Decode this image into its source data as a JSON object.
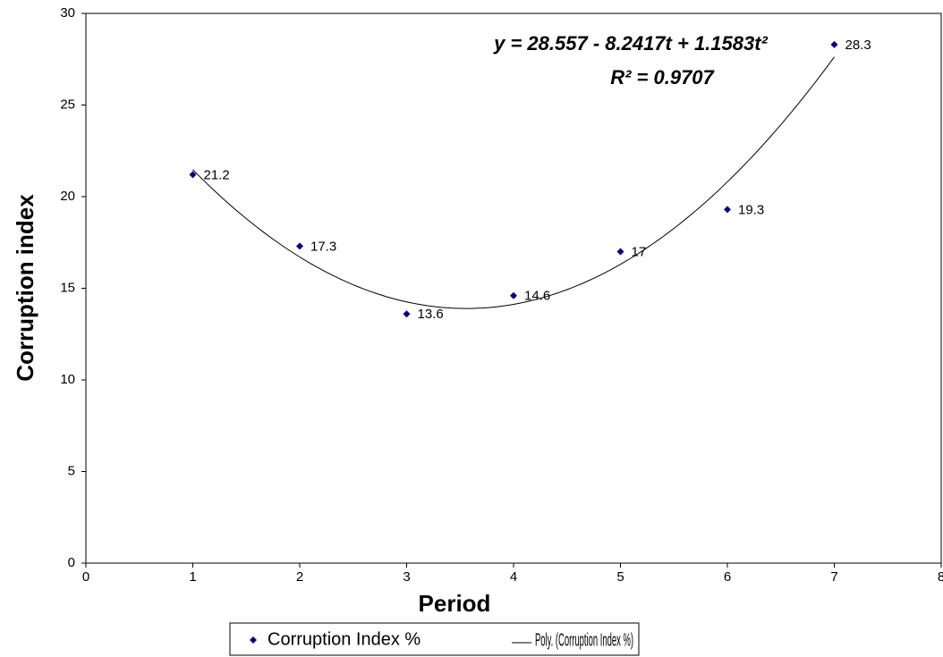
{
  "chart_data": {
    "type": "scatter",
    "x_label": "Period",
    "y_label": "Corruption index",
    "x": [
      1,
      2,
      3,
      4,
      5,
      6,
      7
    ],
    "series": [
      {
        "name": "Corruption Index %",
        "color": "#000080",
        "marker": "diamond",
        "values": [
          21.2,
          17.3,
          13.6,
          14.6,
          17,
          19.3,
          28.3
        ]
      }
    ],
    "data_labels": true,
    "trendline": {
      "type": "polynomial",
      "order": 2,
      "color": "#000000",
      "name": "Poly. (Corruption Index %)",
      "equation": "y = 28.557 - 8.2417t + 1.1583t²",
      "r_squared": "R² = 0.9707"
    },
    "xlim": [
      0,
      8
    ],
    "xticks": [
      0,
      1,
      2,
      3,
      4,
      5,
      6,
      7,
      8
    ],
    "ylim": [
      0,
      30
    ],
    "yticks": [
      0,
      5,
      10,
      15,
      20,
      25,
      30
    ],
    "grid": false,
    "legend": "bottom"
  }
}
